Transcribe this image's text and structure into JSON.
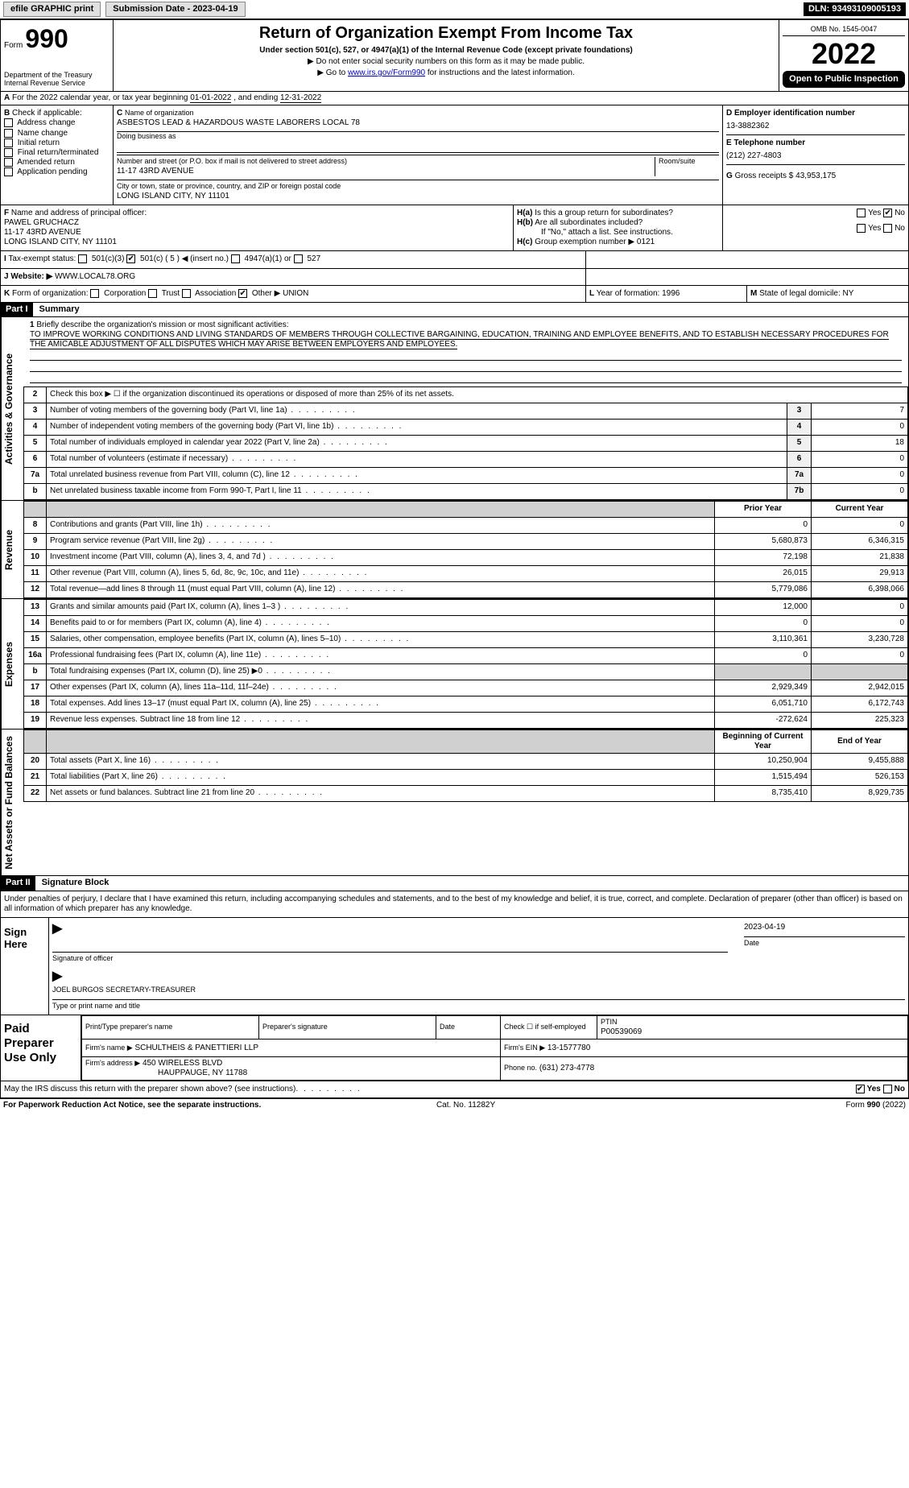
{
  "topbar": {
    "efile_label": "efile GRAPHIC print",
    "submission_label": "Submission Date - 2023-04-19",
    "dln": "DLN: 93493109005193"
  },
  "header": {
    "form_prefix": "Form",
    "form_number": "990",
    "dept": "Department of the Treasury",
    "irs": "Internal Revenue Service",
    "title": "Return of Organization Exempt From Income Tax",
    "subtitle": "Under section 501(c), 527, or 4947(a)(1) of the Internal Revenue Code (except private foundations)",
    "note1": "▶ Do not enter social security numbers on this form as it may be made public.",
    "note2_prefix": "▶ Go to ",
    "note2_link": "www.irs.gov/Form990",
    "note2_suffix": " for instructions and the latest information.",
    "omb": "OMB No. 1545-0047",
    "year": "2022",
    "open_public": "Open to Public Inspection"
  },
  "section_a": {
    "label": "A",
    "text_prefix": "For the 2022 calendar year, or tax year beginning ",
    "begin": "01-01-2022",
    "text_mid": " , and ending ",
    "end": "12-31-2022"
  },
  "section_b": {
    "label": "B",
    "check_label": "Check if applicable:",
    "items": [
      "Address change",
      "Name change",
      "Initial return",
      "Final return/terminated",
      "Amended return",
      "Application pending"
    ]
  },
  "section_c": {
    "label": "C",
    "name_label": "Name of organization",
    "name": "ASBESTOS LEAD & HAZARDOUS WASTE LABORERS LOCAL 78",
    "dba_label": "Doing business as",
    "dba": "",
    "street_label": "Number and street (or P.O. box if mail is not delivered to street address)",
    "room_label": "Room/suite",
    "street": "11-17 43RD AVENUE",
    "city_label": "City or town, state or province, country, and ZIP or foreign postal code",
    "city": "LONG ISLAND CITY, NY  11101"
  },
  "section_d": {
    "label": "D Employer identification number",
    "ein": "13-3882362"
  },
  "section_e": {
    "label": "E Telephone number",
    "phone": "(212) 227-4803"
  },
  "section_g": {
    "label": "G",
    "text": "Gross receipts $",
    "val": "43,953,175"
  },
  "section_f": {
    "label": "F",
    "text": "Name and address of principal officer:",
    "name": "PAWEL GRUCHACZ",
    "street": "11-17 43RD AVENUE",
    "city": "LONG ISLAND CITY, NY  11101"
  },
  "section_h": {
    "a_label": "H(a)",
    "a_text": "Is this a group return for subordinates?",
    "a_yes": "Yes",
    "a_no": "No",
    "b_label": "H(b)",
    "b_text": "Are all subordinates included?",
    "b_note": "If \"No,\" attach a list. See instructions.",
    "c_label": "H(c)",
    "c_text": "Group exemption number ▶",
    "c_val": "0121"
  },
  "section_i": {
    "label": "I",
    "text": "Tax-exempt status:",
    "opt1": "501(c)(3)",
    "opt2": "501(c) ( 5 ) ◀ (insert no.)",
    "opt3": "4947(a)(1) or",
    "opt4": "527"
  },
  "section_j": {
    "label": "J",
    "text": "Website: ▶",
    "val": "WWW.LOCAL78.ORG"
  },
  "section_k": {
    "label": "K",
    "text": "Form of organization:",
    "opts": [
      "Corporation",
      "Trust",
      "Association",
      "Other ▶"
    ],
    "other_val": "UNION"
  },
  "section_l": {
    "label": "L",
    "text": "Year of formation:",
    "val": "1996"
  },
  "section_m": {
    "label": "M",
    "text": "State of legal domicile:",
    "val": "NY"
  },
  "part1": {
    "header": "Part I",
    "title": "Summary"
  },
  "mission": {
    "num": "1",
    "label": "Briefly describe the organization's mission or most significant activities:",
    "text": "TO IMPROVE WORKING CONDITIONS AND LIVING STANDARDS OF MEMBERS THROUGH COLLECTIVE BARGAINING, EDUCATION, TRAINING AND EMPLOYEE BENEFITS, AND TO ESTABLISH NECESSARY PROCEDURES FOR THE AMICABLE ADJUSTMENT OF ALL DISPUTES WHICH MAY ARISE BETWEEN EMPLOYERS AND EMPLOYEES."
  },
  "gov_rows": [
    {
      "num": "2",
      "label": "Check this box ▶ ☐ if the organization discontinued its operations or disposed of more than 25% of its net assets.",
      "box": "",
      "val": ""
    },
    {
      "num": "3",
      "label": "Number of voting members of the governing body (Part VI, line 1a)",
      "box": "3",
      "val": "7"
    },
    {
      "num": "4",
      "label": "Number of independent voting members of the governing body (Part VI, line 1b)",
      "box": "4",
      "val": "0"
    },
    {
      "num": "5",
      "label": "Total number of individuals employed in calendar year 2022 (Part V, line 2a)",
      "box": "5",
      "val": "18"
    },
    {
      "num": "6",
      "label": "Total number of volunteers (estimate if necessary)",
      "box": "6",
      "val": "0"
    },
    {
      "num": "7a",
      "label": "Total unrelated business revenue from Part VIII, column (C), line 12",
      "box": "7a",
      "val": "0"
    },
    {
      "num": "b",
      "label": "Net unrelated business taxable income from Form 990-T, Part I, line 11",
      "box": "7b",
      "val": "0"
    }
  ],
  "rev_header": {
    "prior": "Prior Year",
    "current": "Current Year"
  },
  "rev_rows": [
    {
      "num": "8",
      "label": "Contributions and grants (Part VIII, line 1h)",
      "prior": "0",
      "current": "0"
    },
    {
      "num": "9",
      "label": "Program service revenue (Part VIII, line 2g)",
      "prior": "5,680,873",
      "current": "6,346,315"
    },
    {
      "num": "10",
      "label": "Investment income (Part VIII, column (A), lines 3, 4, and 7d )",
      "prior": "72,198",
      "current": "21,838"
    },
    {
      "num": "11",
      "label": "Other revenue (Part VIII, column (A), lines 5, 6d, 8c, 9c, 10c, and 11e)",
      "prior": "26,015",
      "current": "29,913"
    },
    {
      "num": "12",
      "label": "Total revenue—add lines 8 through 11 (must equal Part VIII, column (A), line 12)",
      "prior": "5,779,086",
      "current": "6,398,066"
    }
  ],
  "exp_rows": [
    {
      "num": "13",
      "label": "Grants and similar amounts paid (Part IX, column (A), lines 1–3 )",
      "prior": "12,000",
      "current": "0"
    },
    {
      "num": "14",
      "label": "Benefits paid to or for members (Part IX, column (A), line 4)",
      "prior": "0",
      "current": "0"
    },
    {
      "num": "15",
      "label": "Salaries, other compensation, employee benefits (Part IX, column (A), lines 5–10)",
      "prior": "3,110,361",
      "current": "3,230,728"
    },
    {
      "num": "16a",
      "label": "Professional fundraising fees (Part IX, column (A), line 11e)",
      "prior": "0",
      "current": "0"
    },
    {
      "num": "b",
      "label": "Total fundraising expenses (Part IX, column (D), line 25) ▶0",
      "prior": "",
      "current": ""
    },
    {
      "num": "17",
      "label": "Other expenses (Part IX, column (A), lines 11a–11d, 11f–24e)",
      "prior": "2,929,349",
      "current": "2,942,015"
    },
    {
      "num": "18",
      "label": "Total expenses. Add lines 13–17 (must equal Part IX, column (A), line 25)",
      "prior": "6,051,710",
      "current": "6,172,743"
    },
    {
      "num": "19",
      "label": "Revenue less expenses. Subtract line 18 from line 12",
      "prior": "-272,624",
      "current": "225,323"
    }
  ],
  "net_header": {
    "prior": "Beginning of Current Year",
    "current": "End of Year"
  },
  "net_rows": [
    {
      "num": "20",
      "label": "Total assets (Part X, line 16)",
      "prior": "10,250,904",
      "current": "9,455,888"
    },
    {
      "num": "21",
      "label": "Total liabilities (Part X, line 26)",
      "prior": "1,515,494",
      "current": "526,153"
    },
    {
      "num": "22",
      "label": "Net assets or fund balances. Subtract line 21 from line 20",
      "prior": "8,735,410",
      "current": "8,929,735"
    }
  ],
  "vtabs": {
    "gov": "Activities & Governance",
    "rev": "Revenue",
    "exp": "Expenses",
    "net": "Net Assets or Fund Balances"
  },
  "part2": {
    "header": "Part II",
    "title": "Signature Block",
    "penalty": "Under penalties of perjury, I declare that I have examined this return, including accompanying schedules and statements, and to the best of my knowledge and belief, it is true, correct, and complete. Declaration of preparer (other than officer) is based on all information of which preparer has any knowledge."
  },
  "sign": {
    "left": "Sign Here",
    "sig_label": "Signature of officer",
    "date_label": "Date",
    "date": "2023-04-19",
    "name": "JOEL BURGOS  SECRETARY-TREASURER",
    "name_label": "Type or print name and title"
  },
  "paid": {
    "left": "Paid Preparer Use Only",
    "h1": "Print/Type preparer's name",
    "h2": "Preparer's signature",
    "h3": "Date",
    "h4_check": "Check ☐ if self-employed",
    "h5": "PTIN",
    "ptin": "P00539069",
    "firm_name_label": "Firm's name    ▶",
    "firm_name": "SCHULTHEIS & PANETTIERI LLP",
    "firm_ein_label": "Firm's EIN ▶",
    "firm_ein": "13-1577780",
    "firm_addr_label": "Firm's address ▶",
    "firm_addr": "450 WIRELESS BLVD",
    "firm_city": "HAUPPAUGE, NY  11788",
    "phone_label": "Phone no.",
    "phone": "(631) 273-4778"
  },
  "discuss": {
    "text": "May the IRS discuss this return with the preparer shown above? (see instructions)",
    "yes": "Yes",
    "no": "No"
  },
  "footer": {
    "left": "For Paperwork Reduction Act Notice, see the separate instructions.",
    "cat": "Cat. No. 11282Y",
    "form": "Form 990 (2022)"
  },
  "colors": {
    "link": "#0000cc",
    "black": "#000000",
    "shade": "#d0d0d0"
  }
}
